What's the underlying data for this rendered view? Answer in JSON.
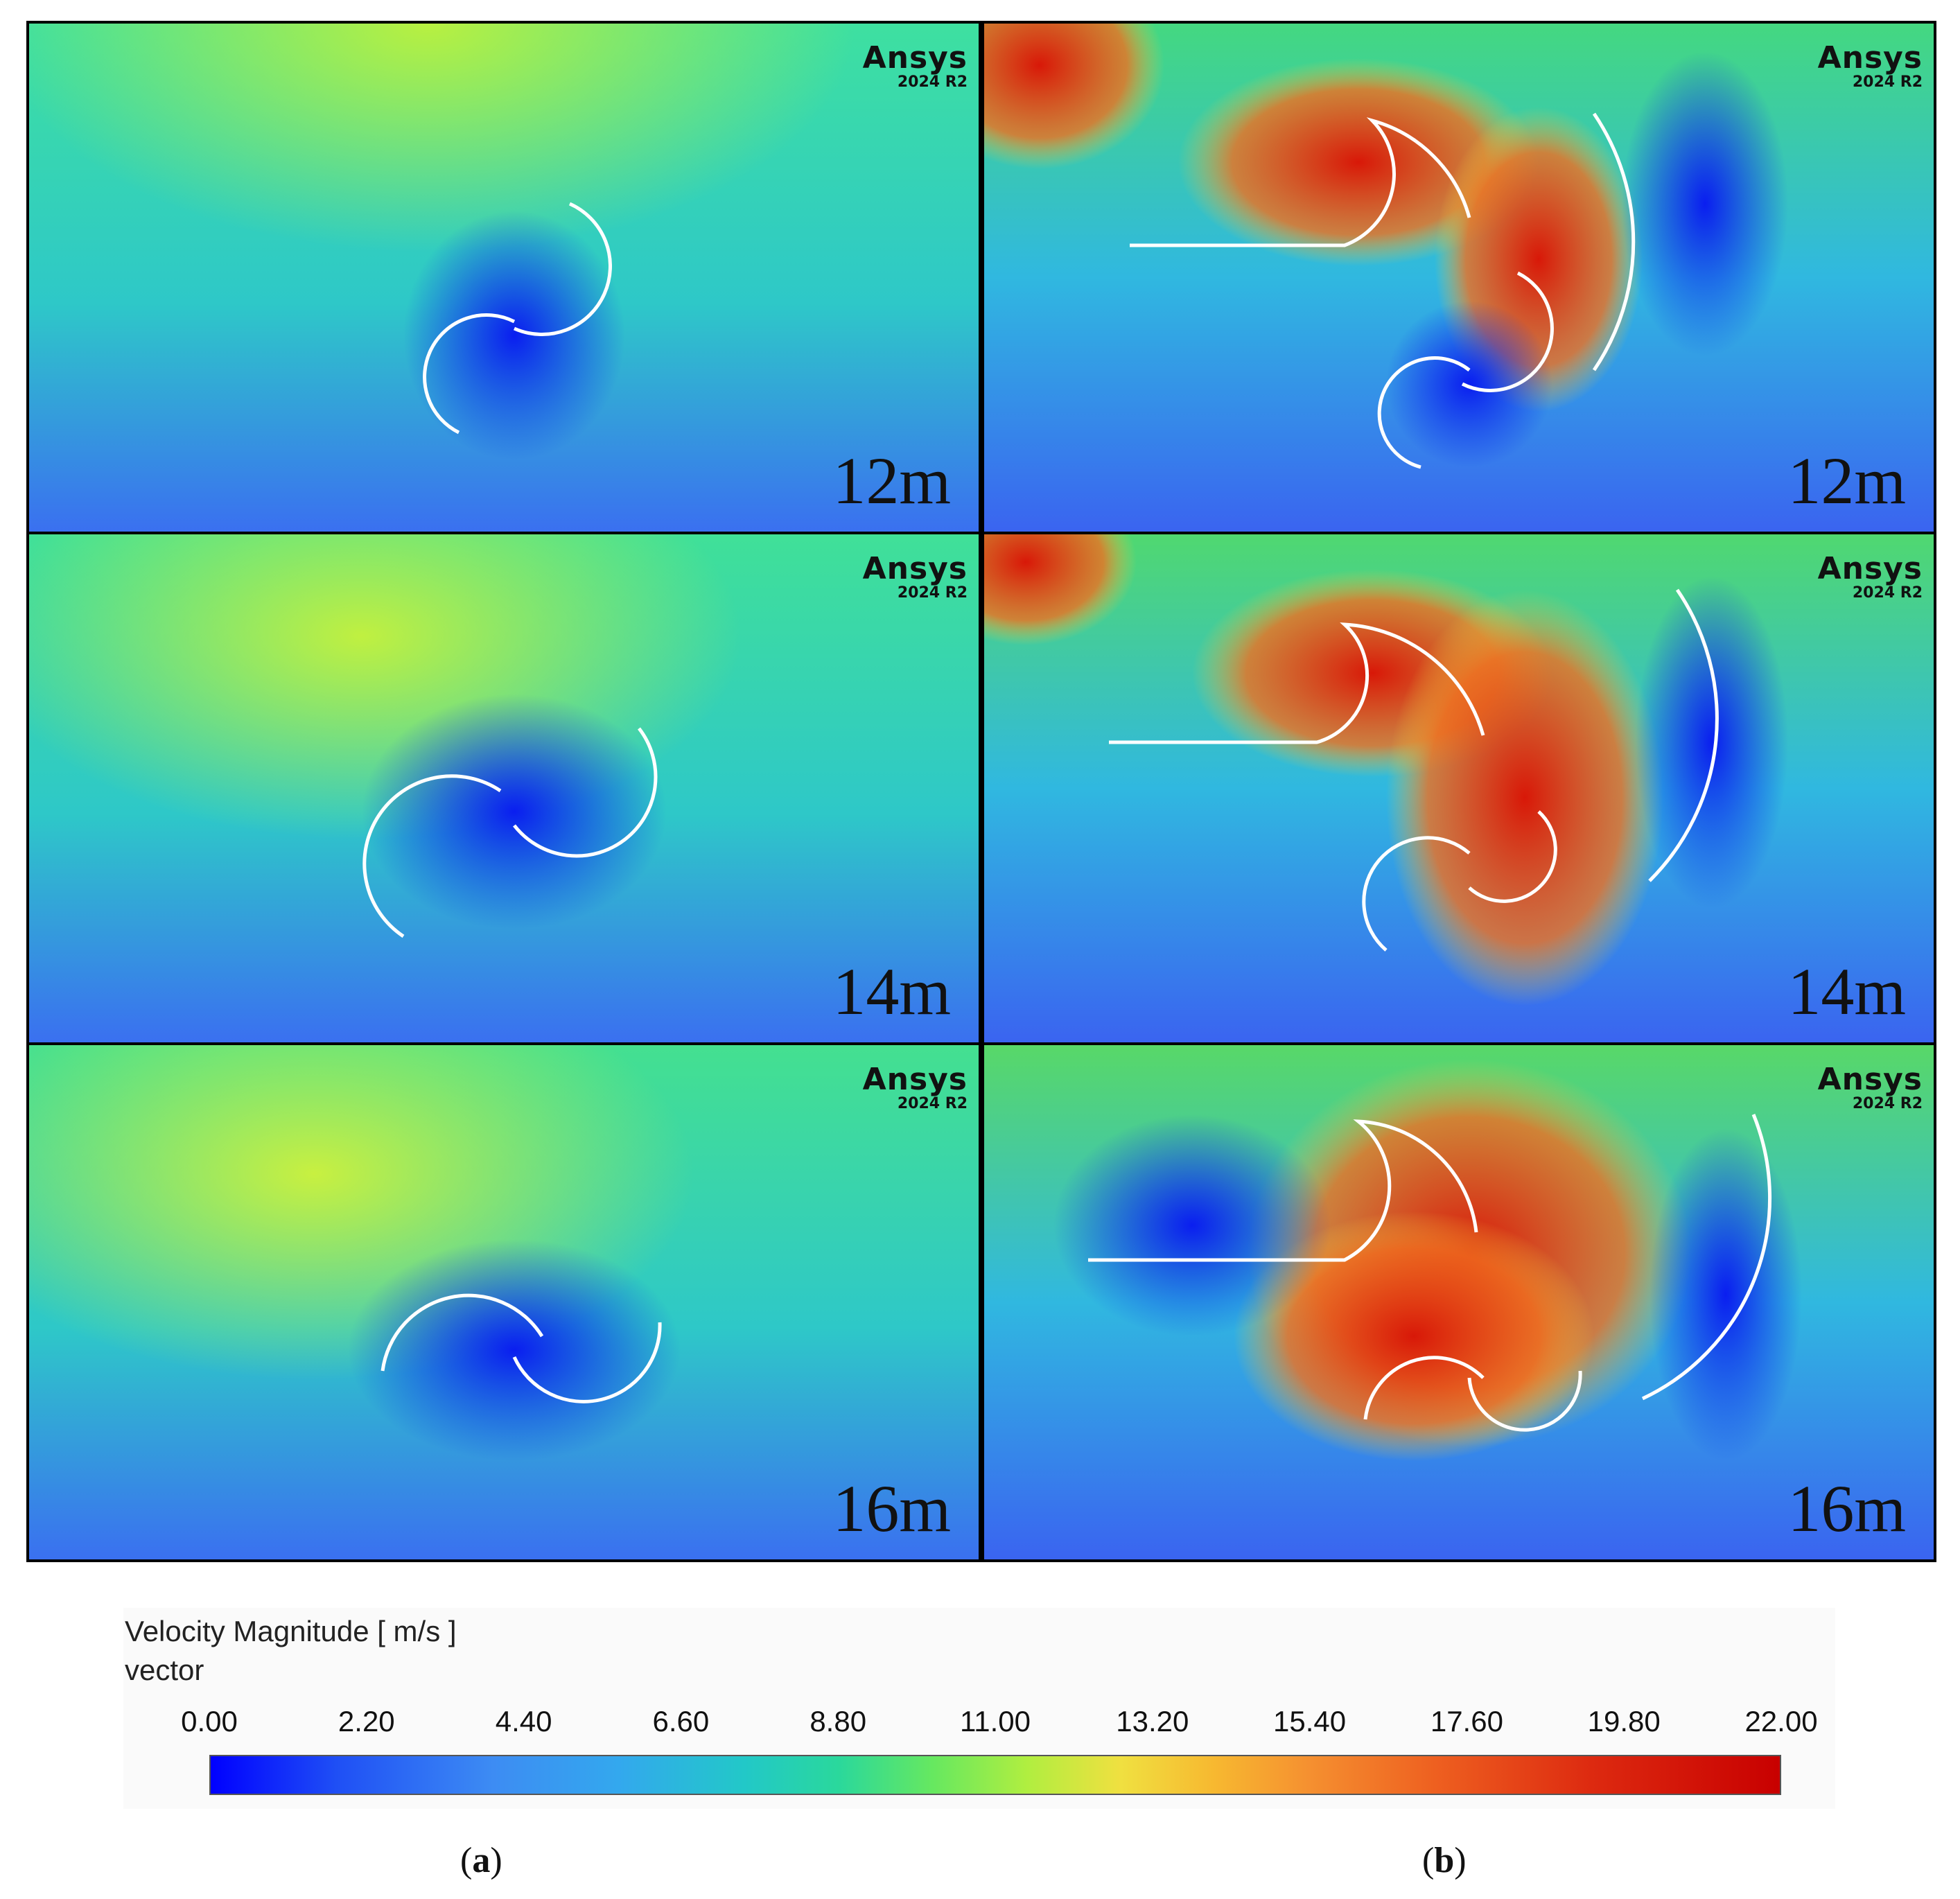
{
  "panels": [
    {
      "id": "a-12",
      "label": "12m",
      "brand": "Ansys",
      "version": "2024 R2"
    },
    {
      "id": "b-12",
      "label": "12m",
      "brand": "Ansys",
      "version": "2024 R2"
    },
    {
      "id": "a-14",
      "label": "14m",
      "brand": "Ansys",
      "version": "2024 R2"
    },
    {
      "id": "b-14",
      "label": "14m",
      "brand": "Ansys",
      "version": "2024 R2"
    },
    {
      "id": "a-16",
      "label": "16m",
      "brand": "Ansys",
      "version": "2024 R2"
    },
    {
      "id": "b-16",
      "label": "16m",
      "brand": "Ansys",
      "version": "2024 R2"
    }
  ],
  "legend": {
    "title_line1": "Velocity Magnitude [ m/s ]",
    "title_line2": "vector",
    "ticks": [
      "0.00",
      "2.20",
      "4.40",
      "6.60",
      "8.80",
      "11.00",
      "13.20",
      "15.40",
      "17.60",
      "19.80",
      "22.00"
    ],
    "min": 0,
    "max": 22,
    "colors": [
      "#0000ff",
      "#3d8cf3",
      "#22c8c8",
      "#66e860",
      "#f0e040",
      "#f59030",
      "#dd2a10",
      "#c80000"
    ]
  },
  "captions": {
    "left_open": "(",
    "left_letter": "a",
    "left_close": ")",
    "right_open": "(",
    "right_letter": "b",
    "right_close": ")"
  }
}
